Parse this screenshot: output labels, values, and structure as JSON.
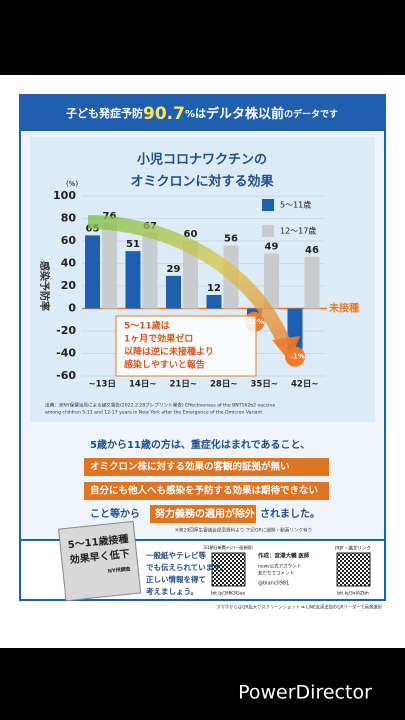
{
  "header": {
    "banner": [
      "子ども発症予防",
      "90.7",
      "%",
      "は",
      "デルタ株以前",
      "のデータです"
    ]
  },
  "chart_data": {
    "type": "bar",
    "title": [
      "小児コロナワクチンの",
      "オミクロンに対する効果"
    ],
    "unit": "(%)",
    "ylabel": "感染予防率",
    "categories": [
      "~13日",
      "14日~",
      "21日~",
      "28日~",
      "35日~",
      "42日~"
    ],
    "series": [
      {
        "name": "5～11歳",
        "color": "#1f5fae",
        "values": [
          65,
          51,
          29,
          12,
          -10,
          -41
        ],
        "value_labels": [
          "65",
          "51",
          "29",
          "12",
          "-10%",
          "-41%"
        ]
      },
      {
        "name": "12～17歳",
        "color": "#c9cbcc",
        "values": [
          76,
          67,
          60,
          56,
          49,
          46
        ]
      }
    ],
    "ylim": [
      -60,
      100
    ],
    "yticks": [
      -60,
      -40,
      -20,
      0,
      20,
      40,
      60,
      80,
      100
    ],
    "grid": true,
    "legend": "upper right",
    "baseline_label": "未接種",
    "annotation": [
      "5～11歳は",
      "1ヶ月で効果ゼロ",
      "以降は逆に未接種より",
      "感染しやすいと報告"
    ],
    "source": [
      "出典：米NY保健当局による論文報告(2022.2.28プレプリント発表) Effectiveness of the BNT162b2 vaccine",
      "among children 5-11 and 12-17 years in New York after the Emergence of the Omicron Variant"
    ]
  },
  "message": {
    "lead": "5歳から11歳の方は、重症化はまれであること、",
    "box1": "オミクロン株に対する効果の客観的証拠が無い",
    "box2": "自分にも他人へも感染を予防する効果は期待できない",
    "pre": "こと等から",
    "box3": "努力義務の適用が除外",
    "post": "されました。",
    "note": "※第29回厚生審議会提案資料より 下記QRに論拠・動画リンク有り"
  },
  "footer": {
    "clipping": [
      "5～11歳接種",
      "効果早く低下"
    ],
    "clipping_sub": "NY州調査",
    "text": [
      "一般紙やテレビ等",
      "でも伝えられています。",
      "正しい情報を得て",
      "考えましょう。"
    ],
    "qr1_label": "3/1朝日新聞デジ(一面参照)",
    "qr1_url": "bit.ly/3HK3Gaa",
    "author": [
      "作成：宮澤大輔 医師",
      "news公式アカウント",
      "友だちでコメント",
      "@blanc0981"
    ],
    "qr2_label": "PDF・論文リンク",
    "qr2_url": "bit.ly/3xIAZbh",
    "howto": "スマホからはQR拡大でスクリーンショット ➡ LINE友達追加のQRリーダーで画像選択"
  },
  "watermark": "PowerDirector"
}
